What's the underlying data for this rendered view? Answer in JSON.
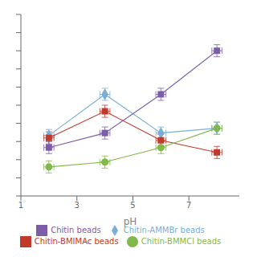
{
  "chart_data": {
    "type": "line",
    "x": [
      2,
      4,
      6,
      8
    ],
    "series": [
      {
        "name": "Chitin-AMMBr beads",
        "color": "#7aaed6",
        "marker": "diamond",
        "values": [
          55,
          72,
          56,
          58
        ]
      },
      {
        "name": "Chitin-BMIMAc beads",
        "color": "#c0392b",
        "marker": "square",
        "values": [
          54,
          65,
          53,
          48
        ]
      },
      {
        "name": "Chitin-BMMCl beads",
        "color": "#82b74b",
        "marker": "circle",
        "values": [
          42,
          44,
          50,
          58
        ]
      },
      {
        "name": "Chitin  beads",
        "color": "#7b5ea7",
        "marker": "square",
        "values": [
          50,
          56,
          72,
          90
        ]
      }
    ],
    "xerr": 0.18,
    "yerr": 2.5,
    "xlabel": "pH",
    "xlim": [
      1,
      8.8
    ],
    "xticks": [
      1,
      3,
      5,
      7
    ],
    "ylim": [
      30,
      105
    ],
    "yticks": [
      30,
      37.5,
      45,
      52.5,
      60,
      67.5,
      75,
      82.5,
      90,
      97.5,
      105
    ],
    "tick_labels": "x",
    "legend": "bottom",
    "grid": false
  }
}
